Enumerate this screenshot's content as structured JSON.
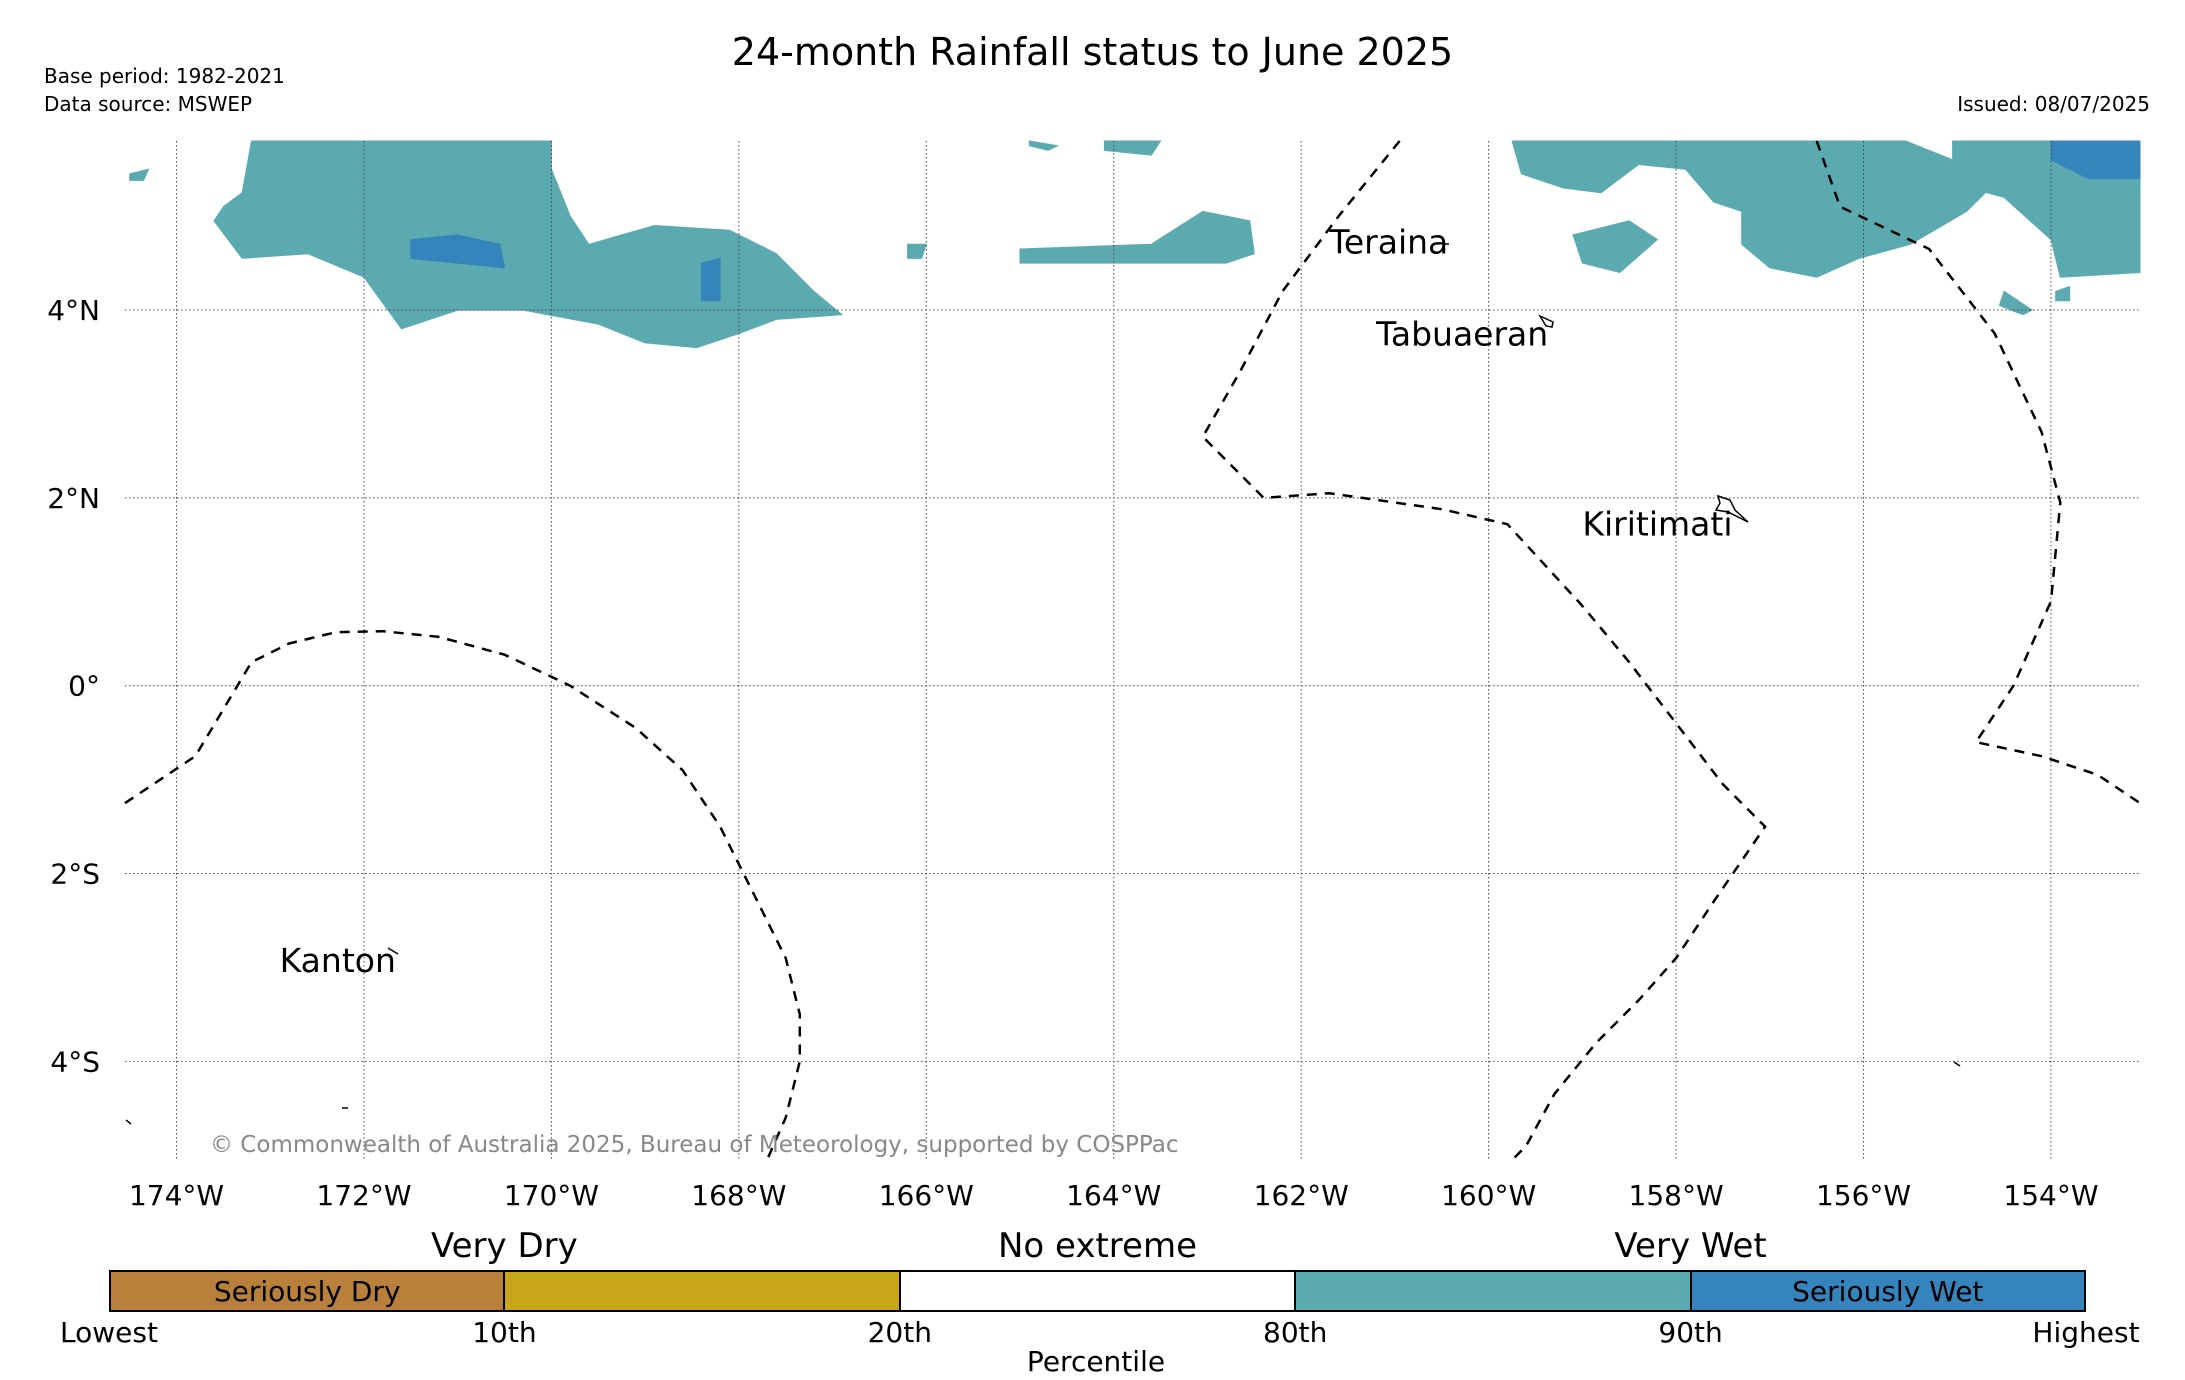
{
  "title": "24-month Rainfall status to June 2025",
  "meta": {
    "base_period": "Base period: 1982-2021",
    "data_source": "Data source: MSWEP",
    "issued": "Issued: 08/07/2025"
  },
  "copyright": "© Commonwealth of Australia 2025, Bureau of Meteorology, supported by COSPPac",
  "map": {
    "lon_range": [
      -174.55,
      -153.05
    ],
    "lat_range": [
      -5.05,
      5.8
    ],
    "lon_ticks": [
      -174,
      -172,
      -170,
      -168,
      -166,
      -164,
      -162,
      -160,
      -158,
      -156,
      -154
    ],
    "lon_tick_labels": [
      "174°W",
      "172°W",
      "170°W",
      "168°W",
      "166°W",
      "164°W",
      "162°W",
      "160°W",
      "158°W",
      "156°W",
      "154°W"
    ],
    "lat_ticks": [
      4,
      2,
      0,
      -2,
      -4
    ],
    "lat_tick_labels": [
      "4°N",
      "2°N",
      "0°",
      "2°S",
      "4°S"
    ],
    "gridlines": true,
    "place_labels": [
      {
        "name": "Teraina",
        "lon": -161.7,
        "lat": 4.6
      },
      {
        "name": "Tabuaeran",
        "lon": -161.2,
        "lat": 3.62
      },
      {
        "name": "Kiritimati",
        "lon": -159.0,
        "lat": 1.6
      },
      {
        "name": "Kanton",
        "lon": -172.9,
        "lat": -3.05
      }
    ],
    "boundary_lines": [
      [
        [
          -174.55,
          -1.25
        ],
        [
          -173.8,
          -0.75
        ],
        [
          -173.2,
          0.25
        ],
        [
          -172.8,
          0.45
        ],
        [
          -172.3,
          0.57
        ],
        [
          -171.8,
          0.58
        ],
        [
          -171.2,
          0.52
        ],
        [
          -170.5,
          0.33
        ],
        [
          -169.8,
          0.0
        ],
        [
          -169.1,
          -0.45
        ],
        [
          -168.6,
          -0.9
        ],
        [
          -168.2,
          -1.5
        ],
        [
          -167.8,
          -2.3
        ],
        [
          -167.5,
          -2.9
        ],
        [
          -167.35,
          -3.5
        ],
        [
          -167.35,
          -4.0
        ],
        [
          -167.5,
          -4.6
        ],
        [
          -167.7,
          -5.05
        ]
      ],
      [
        [
          -160.95,
          5.8
        ],
        [
          -161.6,
          5.0
        ],
        [
          -162.2,
          4.2
        ],
        [
          -162.65,
          3.35
        ],
        [
          -163.05,
          2.65
        ],
        [
          -162.4,
          2.0
        ],
        [
          -161.7,
          2.05
        ],
        [
          -160.5,
          1.88
        ],
        [
          -159.8,
          1.72
        ],
        [
          -159.0,
          0.85
        ],
        [
          -158.5,
          0.25
        ],
        [
          -158.0,
          -0.4
        ],
        [
          -157.5,
          -1.05
        ],
        [
          -157.05,
          -1.5
        ],
        [
          -157.6,
          -2.3
        ],
        [
          -158.0,
          -2.9
        ],
        [
          -158.4,
          -3.35
        ],
        [
          -158.85,
          -3.8
        ],
        [
          -159.3,
          -4.35
        ],
        [
          -159.6,
          -4.9
        ],
        [
          -159.75,
          -5.05
        ]
      ],
      [
        [
          -156.5,
          5.8
        ],
        [
          -156.25,
          5.1
        ],
        [
          -155.3,
          4.65
        ],
        [
          -154.6,
          3.75
        ],
        [
          -154.1,
          2.7
        ],
        [
          -153.9,
          1.95
        ],
        [
          -154.0,
          0.9
        ],
        [
          -154.4,
          0.0
        ],
        [
          -154.8,
          -0.6
        ],
        [
          -154.1,
          -0.75
        ],
        [
          -153.5,
          -0.95
        ],
        [
          -153.05,
          -1.25
        ]
      ]
    ],
    "rain_regions": [
      {
        "category": "very_wet",
        "polygon": [
          [
            -174.5,
            5.45
          ],
          [
            -174.3,
            5.5
          ],
          [
            -174.35,
            5.38
          ],
          [
            -174.5,
            5.38
          ]
        ]
      },
      {
        "category": "very_wet",
        "polygon": [
          [
            -173.5,
            5.1
          ],
          [
            -173.3,
            5.25
          ],
          [
            -173.2,
            5.8
          ],
          [
            -170.0,
            5.8
          ],
          [
            -170.0,
            5.5
          ],
          [
            -169.8,
            5.0
          ],
          [
            -169.6,
            4.7
          ],
          [
            -168.9,
            4.9
          ],
          [
            -168.1,
            4.85
          ],
          [
            -167.6,
            4.6
          ],
          [
            -167.2,
            4.2
          ],
          [
            -166.9,
            3.95
          ],
          [
            -167.6,
            3.9
          ],
          [
            -168.0,
            3.75
          ],
          [
            -168.45,
            3.6
          ],
          [
            -169.0,
            3.65
          ],
          [
            -169.5,
            3.85
          ],
          [
            -170.3,
            4.0
          ],
          [
            -171.0,
            4.0
          ],
          [
            -171.6,
            3.8
          ],
          [
            -172.0,
            4.35
          ],
          [
            -172.6,
            4.6
          ],
          [
            -173.3,
            4.55
          ],
          [
            -173.6,
            4.95
          ]
        ]
      },
      {
        "category": "seriously_wet",
        "polygon": [
          [
            -171.5,
            4.75
          ],
          [
            -171.0,
            4.8
          ],
          [
            -170.55,
            4.7
          ],
          [
            -170.5,
            4.45
          ],
          [
            -171.0,
            4.5
          ],
          [
            -171.5,
            4.55
          ]
        ]
      },
      {
        "category": "seriously_wet",
        "polygon": [
          [
            -168.4,
            4.5
          ],
          [
            -168.2,
            4.55
          ],
          [
            -168.2,
            4.1
          ],
          [
            -168.4,
            4.1
          ]
        ]
      },
      {
        "category": "very_wet",
        "polygon": [
          [
            -165.0,
            4.65
          ],
          [
            -163.6,
            4.7
          ],
          [
            -163.05,
            5.05
          ],
          [
            -162.55,
            4.95
          ],
          [
            -162.5,
            4.6
          ],
          [
            -162.8,
            4.5
          ],
          [
            -163.5,
            4.5
          ],
          [
            -165.0,
            4.5
          ]
        ]
      },
      {
        "category": "very_wet",
        "polygon": [
          [
            -166.2,
            4.7
          ],
          [
            -166.0,
            4.7
          ],
          [
            -166.05,
            4.55
          ],
          [
            -166.2,
            4.55
          ]
        ]
      },
      {
        "category": "very_wet",
        "polygon": [
          [
            -164.1,
            5.8
          ],
          [
            -163.5,
            5.8
          ],
          [
            -163.6,
            5.65
          ],
          [
            -164.1,
            5.7
          ]
        ]
      },
      {
        "category": "very_wet",
        "polygon": [
          [
            -164.9,
            5.8
          ],
          [
            -164.6,
            5.75
          ],
          [
            -164.7,
            5.7
          ],
          [
            -164.9,
            5.75
          ]
        ]
      },
      {
        "category": "very_wet",
        "polygon": [
          [
            -159.75,
            5.8
          ],
          [
            -155.55,
            5.8
          ],
          [
            -155.05,
            5.6
          ],
          [
            -154.7,
            5.25
          ],
          [
            -154.9,
            5.05
          ],
          [
            -155.5,
            4.7
          ],
          [
            -156.05,
            4.55
          ],
          [
            -156.5,
            4.35
          ],
          [
            -157.0,
            4.45
          ],
          [
            -157.3,
            4.7
          ],
          [
            -157.3,
            5.05
          ],
          [
            -157.6,
            5.15
          ],
          [
            -157.9,
            5.5
          ],
          [
            -158.4,
            5.55
          ],
          [
            -158.8,
            5.25
          ],
          [
            -159.2,
            5.3
          ],
          [
            -159.65,
            5.45
          ]
        ]
      },
      {
        "category": "very_wet",
        "polygon": [
          [
            -159.1,
            4.8
          ],
          [
            -158.5,
            4.95
          ],
          [
            -158.2,
            4.75
          ],
          [
            -158.6,
            4.4
          ],
          [
            -159.0,
            4.5
          ]
        ]
      },
      {
        "category": "very_wet",
        "polygon": [
          [
            -155.05,
            5.8
          ],
          [
            -153.05,
            5.8
          ],
          [
            -153.05,
            4.4
          ],
          [
            -153.9,
            4.35
          ],
          [
            -154.0,
            4.75
          ],
          [
            -154.5,
            5.2
          ],
          [
            -155.05,
            5.35
          ]
        ]
      },
      {
        "category": "seriously_wet",
        "polygon": [
          [
            -154.0,
            5.8
          ],
          [
            -153.05,
            5.8
          ],
          [
            -153.05,
            5.4
          ],
          [
            -153.6,
            5.4
          ],
          [
            -154.0,
            5.6
          ]
        ]
      },
      {
        "category": "very_wet",
        "polygon": [
          [
            -154.5,
            4.2
          ],
          [
            -154.2,
            4.0
          ],
          [
            -154.3,
            3.95
          ],
          [
            -154.55,
            4.05
          ]
        ]
      },
      {
        "category": "very_wet",
        "polygon": [
          [
            -153.95,
            4.2
          ],
          [
            -153.8,
            4.25
          ],
          [
            -153.8,
            4.1
          ],
          [
            -153.95,
            4.1
          ]
        ]
      }
    ]
  },
  "colorbar": {
    "colors": {
      "seriously_dry": "#b9803b",
      "very_dry": "#c8a61c",
      "no_extreme": "#ffffff",
      "very_wet": "#5aaaaf",
      "seriously_wet": "#3585bc"
    },
    "segments": [
      {
        "key": "seriously_dry",
        "label": "Seriously Dry"
      },
      {
        "key": "very_dry",
        "label": ""
      },
      {
        "key": "no_extreme",
        "label": ""
      },
      {
        "key": "very_wet",
        "label": ""
      },
      {
        "key": "seriously_wet",
        "label": "Seriously Wet"
      }
    ],
    "group_labels": [
      "Very Dry",
      "No extreme",
      "Very Wet"
    ],
    "tick_labels": [
      "Lowest",
      "10th",
      "20th",
      "80th",
      "90th",
      "Highest"
    ],
    "axis_label": "Percentile"
  }
}
